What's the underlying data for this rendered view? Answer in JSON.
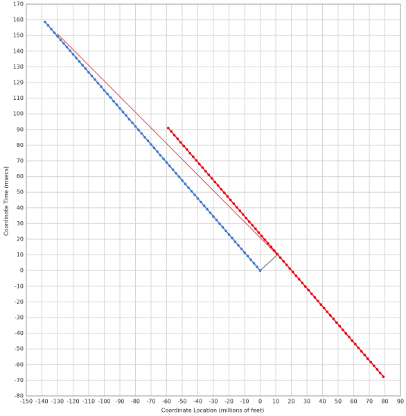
{
  "chart_data": {
    "type": "scatter",
    "xlabel": "Coordinate Location (millions of feet)",
    "ylabel": "Coordinate Time (msecs)",
    "xlim": [
      -150,
      90
    ],
    "ylim": [
      -80,
      170
    ],
    "xticks": [
      -150,
      -140,
      -130,
      -120,
      -110,
      -100,
      -90,
      -80,
      -70,
      -60,
      -50,
      -40,
      -30,
      -20,
      -10,
      0,
      10,
      20,
      30,
      40,
      50,
      60,
      70,
      80,
      90
    ],
    "yticks": [
      -80,
      -70,
      -60,
      -50,
      -40,
      -30,
      -20,
      -10,
      0,
      10,
      20,
      30,
      40,
      50,
      60,
      70,
      80,
      90,
      100,
      110,
      120,
      130,
      140,
      150,
      160,
      170
    ],
    "grid": true,
    "series": [
      {
        "color": "#e8000b",
        "markers": false,
        "x": [
          -130,
          11
        ],
        "y": [
          151,
          10
        ]
      },
      {
        "color": "#333333",
        "markers": false,
        "x": [
          0,
          11
        ],
        "y": [
          0,
          10
        ]
      },
      {
        "color": "#3a73c9",
        "markers": true,
        "x": [
          0,
          -2,
          -4,
          -6,
          -8,
          -10,
          -12,
          -14,
          -16,
          -18,
          -20,
          -22,
          -24,
          -26,
          -28,
          -30,
          -32,
          -34,
          -36,
          -38,
          -40,
          -42,
          -44,
          -46,
          -48,
          -50,
          -52,
          -54,
          -56,
          -58,
          -60,
          -62,
          -64,
          -66,
          -68,
          -70,
          -72,
          -74,
          -76,
          -78,
          -80,
          -82,
          -84,
          -86,
          -88,
          -90,
          -92,
          -94,
          -96,
          -98,
          -100,
          -102,
          -104,
          -106,
          -108,
          -110,
          -112,
          -114,
          -116,
          -118,
          -120,
          -122,
          -124,
          -126,
          -128,
          -130,
          -132,
          -134,
          -136,
          -138
        ],
        "y": [
          0,
          2.3,
          4.6,
          6.9,
          9.2,
          11.5,
          13.8,
          16.1,
          18.4,
          20.7,
          23,
          25.3,
          27.6,
          29.9,
          32.2,
          34.5,
          36.8,
          39.1,
          41.4,
          43.7,
          46,
          48.3,
          50.6,
          52.9,
          55.2,
          57.5,
          59.8,
          62.1,
          64.4,
          66.7,
          69,
          71.3,
          73.6,
          75.9,
          78.2,
          80.5,
          82.8,
          85.1,
          87.4,
          89.7,
          92,
          94.3,
          96.6,
          98.9,
          101.2,
          103.5,
          105.8,
          108.1,
          110.4,
          112.7,
          115,
          117.3,
          119.6,
          121.9,
          124.2,
          126.5,
          128.8,
          131.1,
          133.4,
          135.7,
          138,
          140.3,
          142.6,
          144.9,
          147.2,
          149.5,
          151.8,
          154.1,
          156.4,
          158.7
        ]
      },
      {
        "color": "#e8000b",
        "markers": true,
        "x": [
          -59,
          -57,
          -55,
          -53,
          -51,
          -49,
          -47,
          -45,
          -43,
          -41,
          -39,
          -37,
          -35,
          -33,
          -31,
          -29,
          -27,
          -25,
          -23,
          -21,
          -19,
          -17,
          -15,
          -13,
          -11,
          -9,
          -7,
          -5,
          -3,
          -1,
          1,
          3,
          5,
          7,
          9,
          11,
          13,
          15,
          17,
          19,
          21,
          23,
          25,
          27,
          29,
          31,
          33,
          35,
          37,
          39,
          41,
          43,
          45,
          47,
          49,
          51,
          53,
          55,
          57,
          59,
          61,
          63,
          65,
          67,
          69,
          71,
          73,
          75,
          77,
          79
        ],
        "y": [
          91,
          88.7,
          86.4,
          84.1,
          81.8,
          79.5,
          77.2,
          74.9,
          72.6,
          70.3,
          68,
          65.7,
          63.4,
          61.1,
          58.8,
          56.5,
          54.2,
          51.9,
          49.6,
          47.3,
          45,
          42.7,
          40.4,
          38.1,
          35.8,
          33.5,
          31.2,
          28.9,
          26.6,
          24.3,
          22,
          19.7,
          17.4,
          15.1,
          12.8,
          10.5,
          8.2,
          5.9,
          3.6,
          1.3,
          -1,
          -3.3,
          -5.6,
          -7.9,
          -10.2,
          -12.5,
          -14.8,
          -17.1,
          -19.4,
          -21.7,
          -24,
          -26.3,
          -28.6,
          -30.9,
          -33.2,
          -35.5,
          -37.8,
          -40.1,
          -42.4,
          -44.7,
          -47,
          -49.3,
          -51.6,
          -53.9,
          -56.2,
          -58.5,
          -60.8,
          -63.1,
          -65.4,
          -67.7
        ]
      }
    ]
  }
}
